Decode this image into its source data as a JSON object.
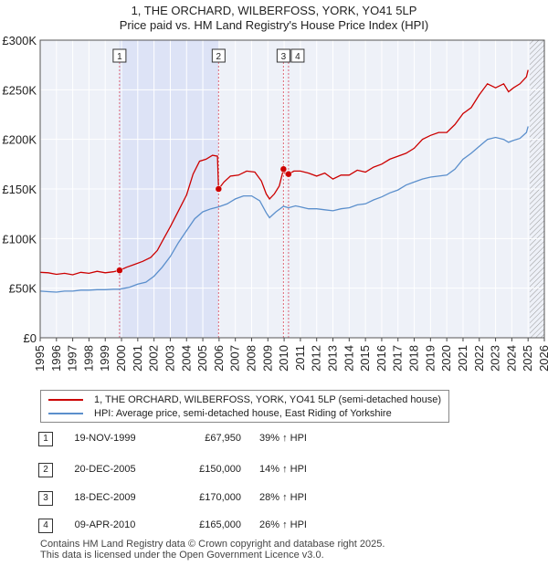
{
  "chart_data": {
    "type": "line",
    "title": "1, THE ORCHARD, WILBERFOSS, YORK, YO41 5LP",
    "subtitle": "Price paid vs. HM Land Registry's House Price Index (HPI)",
    "xlabel": "",
    "ylabel": "",
    "xlim": [
      1995,
      2026
    ],
    "ylim": [
      0,
      300000
    ],
    "x_ticks": [
      "1995",
      "1996",
      "1997",
      "1998",
      "1999",
      "2000",
      "2001",
      "2002",
      "2003",
      "2004",
      "2005",
      "2006",
      "2007",
      "2008",
      "2009",
      "2010",
      "2011",
      "2012",
      "2013",
      "2014",
      "2015",
      "2016",
      "2017",
      "2018",
      "2019",
      "2020",
      "2021",
      "2022",
      "2023",
      "2024",
      "2025",
      "2026"
    ],
    "y_ticks": [
      {
        "value": 0,
        "label": "£0"
      },
      {
        "value": 50000,
        "label": "£50K"
      },
      {
        "value": 100000,
        "label": "£100K"
      },
      {
        "value": 150000,
        "label": "£150K"
      },
      {
        "value": 200000,
        "label": "£200K"
      },
      {
        "value": 250000,
        "label": "£250K"
      },
      {
        "value": 300000,
        "label": "£300K"
      }
    ],
    "grid": true,
    "shaded_span": [
      1999.88,
      2005.97
    ],
    "future_hatch_from": 2025.1,
    "series": [
      {
        "name": "1, THE ORCHARD, WILBERFOSS, YORK, YO41 5LP (semi-detached house)",
        "color": "#cc0000",
        "points": [
          [
            1995.0,
            66000
          ],
          [
            1995.5,
            65500
          ],
          [
            1996.0,
            64000
          ],
          [
            1996.5,
            65000
          ],
          [
            1997.0,
            63500
          ],
          [
            1997.5,
            66000
          ],
          [
            1998.0,
            65000
          ],
          [
            1998.5,
            67000
          ],
          [
            1999.0,
            65500
          ],
          [
            1999.5,
            66500
          ],
          [
            1999.88,
            67950
          ],
          [
            2000.3,
            71000
          ],
          [
            2000.8,
            74000
          ],
          [
            2001.3,
            77000
          ],
          [
            2001.8,
            81000
          ],
          [
            2002.2,
            88000
          ],
          [
            2002.6,
            100000
          ],
          [
            2003.0,
            112000
          ],
          [
            2003.5,
            128000
          ],
          [
            2004.0,
            144000
          ],
          [
            2004.4,
            165000
          ],
          [
            2004.8,
            178000
          ],
          [
            2005.2,
            180000
          ],
          [
            2005.6,
            184000
          ],
          [
            2005.9,
            183000
          ],
          [
            2005.97,
            150000
          ],
          [
            2006.3,
            157000
          ],
          [
            2006.7,
            163000
          ],
          [
            2007.2,
            164000
          ],
          [
            2007.7,
            168000
          ],
          [
            2008.2,
            167000
          ],
          [
            2008.6,
            158000
          ],
          [
            2008.9,
            145000
          ],
          [
            2009.1,
            140000
          ],
          [
            2009.4,
            145000
          ],
          [
            2009.7,
            153000
          ],
          [
            2009.96,
            170000
          ],
          [
            2010.1,
            164000
          ],
          [
            2010.27,
            165000
          ],
          [
            2010.6,
            168000
          ],
          [
            2011.0,
            168000
          ],
          [
            2011.5,
            166000
          ],
          [
            2012.0,
            163000
          ],
          [
            2012.5,
            166000
          ],
          [
            2013.0,
            160000
          ],
          [
            2013.5,
            164000
          ],
          [
            2014.0,
            164000
          ],
          [
            2014.5,
            169000
          ],
          [
            2015.0,
            167000
          ],
          [
            2015.5,
            172000
          ],
          [
            2016.0,
            175000
          ],
          [
            2016.5,
            180000
          ],
          [
            2017.0,
            183000
          ],
          [
            2017.5,
            186000
          ],
          [
            2018.0,
            191000
          ],
          [
            2018.5,
            200000
          ],
          [
            2019.0,
            204000
          ],
          [
            2019.5,
            207000
          ],
          [
            2020.0,
            207000
          ],
          [
            2020.5,
            215000
          ],
          [
            2021.0,
            226000
          ],
          [
            2021.5,
            232000
          ],
          [
            2022.0,
            245000
          ],
          [
            2022.5,
            256000
          ],
          [
            2023.0,
            252000
          ],
          [
            2023.5,
            256000
          ],
          [
            2023.8,
            248000
          ],
          [
            2024.1,
            252000
          ],
          [
            2024.5,
            256000
          ],
          [
            2024.9,
            263000
          ],
          [
            2025.0,
            270000
          ]
        ]
      },
      {
        "name": "HPI: Average price, semi-detached house, East Riding of Yorkshire",
        "color": "#5b8fcc",
        "points": [
          [
            1995.0,
            47000
          ],
          [
            1995.5,
            46500
          ],
          [
            1996.0,
            46000
          ],
          [
            1996.5,
            47000
          ],
          [
            1997.0,
            47000
          ],
          [
            1997.5,
            48000
          ],
          [
            1998.0,
            48000
          ],
          [
            1998.5,
            48500
          ],
          [
            1999.0,
            48500
          ],
          [
            1999.5,
            49000
          ],
          [
            1999.88,
            49000
          ],
          [
            2000.5,
            51000
          ],
          [
            2001.0,
            54000
          ],
          [
            2001.5,
            56000
          ],
          [
            2002.0,
            62000
          ],
          [
            2002.5,
            71000
          ],
          [
            2003.0,
            82000
          ],
          [
            2003.5,
            96000
          ],
          [
            2004.0,
            108000
          ],
          [
            2004.5,
            120000
          ],
          [
            2005.0,
            127000
          ],
          [
            2005.5,
            130000
          ],
          [
            2005.97,
            132000
          ],
          [
            2006.5,
            135000
          ],
          [
            2007.0,
            140000
          ],
          [
            2007.5,
            143000
          ],
          [
            2008.0,
            143000
          ],
          [
            2008.5,
            138000
          ],
          [
            2008.9,
            126000
          ],
          [
            2009.1,
            121000
          ],
          [
            2009.5,
            127000
          ],
          [
            2009.96,
            132500
          ],
          [
            2010.27,
            131000
          ],
          [
            2010.7,
            133000
          ],
          [
            2011.0,
            132000
          ],
          [
            2011.5,
            130000
          ],
          [
            2012.0,
            130000
          ],
          [
            2012.5,
            129000
          ],
          [
            2013.0,
            128000
          ],
          [
            2013.5,
            130000
          ],
          [
            2014.0,
            131000
          ],
          [
            2014.5,
            134000
          ],
          [
            2015.0,
            135000
          ],
          [
            2015.5,
            139000
          ],
          [
            2016.0,
            142000
          ],
          [
            2016.5,
            146000
          ],
          [
            2017.0,
            149000
          ],
          [
            2017.5,
            154000
          ],
          [
            2018.0,
            157000
          ],
          [
            2018.5,
            160000
          ],
          [
            2019.0,
            162000
          ],
          [
            2019.5,
            163000
          ],
          [
            2020.0,
            164000
          ],
          [
            2020.5,
            170000
          ],
          [
            2021.0,
            180000
          ],
          [
            2021.5,
            186000
          ],
          [
            2022.0,
            193000
          ],
          [
            2022.5,
            200000
          ],
          [
            2023.0,
            202000
          ],
          [
            2023.5,
            200000
          ],
          [
            2023.8,
            197000
          ],
          [
            2024.1,
            199000
          ],
          [
            2024.5,
            201000
          ],
          [
            2024.9,
            207000
          ],
          [
            2025.0,
            213000
          ]
        ]
      }
    ],
    "sales": [
      {
        "num": "1",
        "x": 1999.88,
        "value": 67950
      },
      {
        "num": "2",
        "x": 2005.97,
        "value": 150000
      },
      {
        "num": "3",
        "x": 2009.96,
        "value": 170000
      },
      {
        "num": "4",
        "x": 2010.27,
        "value": 165000
      }
    ]
  },
  "legend": {
    "red_label": "1, THE ORCHARD, WILBERFOSS, YORK, YO41 5LP (semi-detached house)",
    "blue_label": "HPI: Average price, semi-detached house, East Riding of Yorkshire"
  },
  "sales_table": [
    {
      "num": "1",
      "date": "19-NOV-1999",
      "price": "£67,950",
      "hpi": "39% ↑ HPI"
    },
    {
      "num": "2",
      "date": "20-DEC-2005",
      "price": "£150,000",
      "hpi": "14% ↑ HPI"
    },
    {
      "num": "3",
      "date": "18-DEC-2009",
      "price": "£170,000",
      "hpi": "28% ↑ HPI"
    },
    {
      "num": "4",
      "date": "09-APR-2010",
      "price": "£165,000",
      "hpi": "26% ↑ HPI"
    }
  ],
  "footer": {
    "line1": "Contains HM Land Registry data © Crown copyright and database right 2025.",
    "line2": "This data is licensed under the Open Government Licence v3.0."
  }
}
